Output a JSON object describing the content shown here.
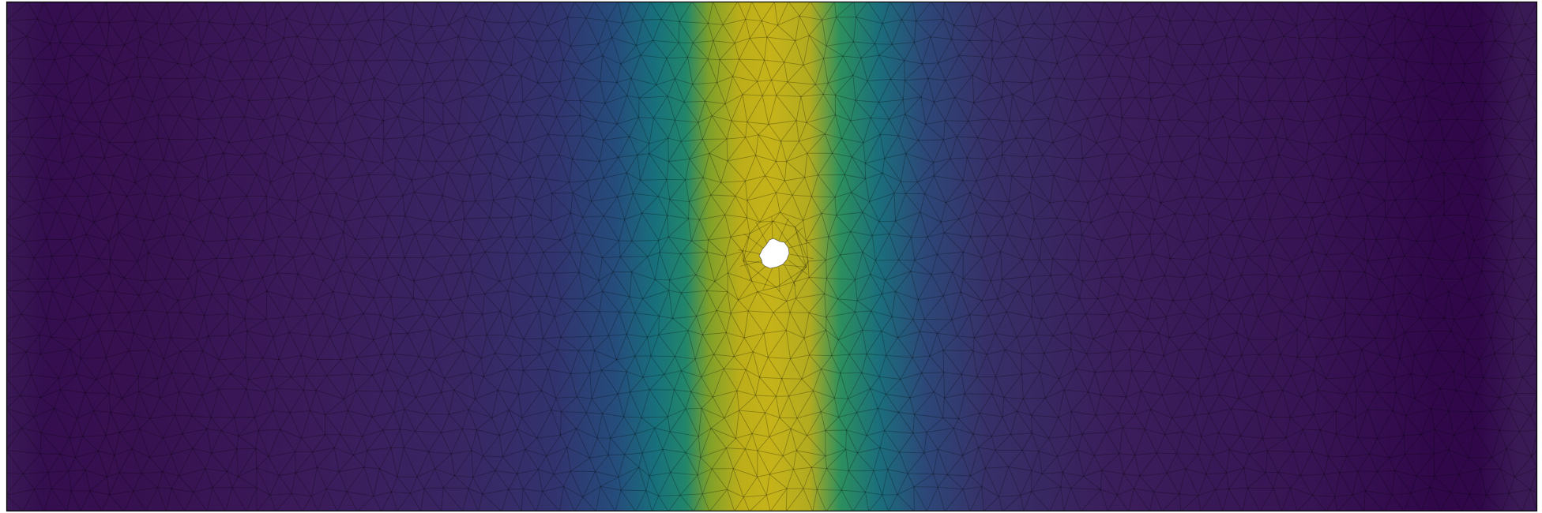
{
  "scene": {
    "subject": "triangulated-mesh-field-plot",
    "colormap": "viridis",
    "colormap_stops": [
      "#440154",
      "#3b528b",
      "#21918c",
      "#5ec962",
      "#bdb218"
    ],
    "mesh_edge_color": "#000000",
    "frame_color": "#000000",
    "hole_color": "#ffffff",
    "background_color": "#ffffff"
  }
}
